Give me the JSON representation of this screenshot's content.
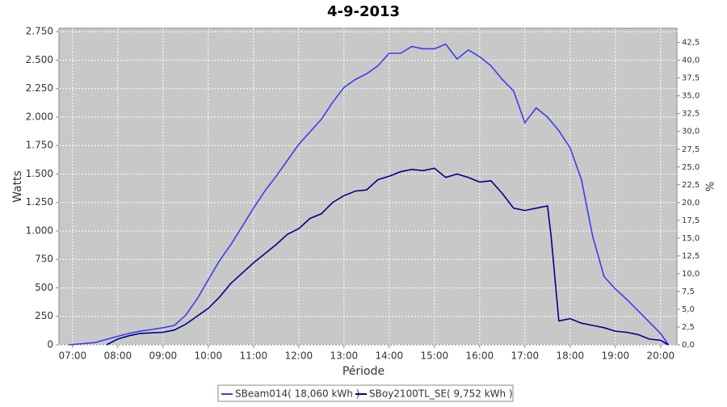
{
  "chart_data": {
    "type": "line",
    "title": "4-9-2013",
    "x_label": "Période",
    "y_label": "Watts",
    "y2_label": "%",
    "xlim": [
      6.7,
      20.36
    ],
    "xticks": [
      {
        "value": 7,
        "label": "07:00"
      },
      {
        "value": 8,
        "label": "08:00"
      },
      {
        "value": 9,
        "label": "09:00"
      },
      {
        "value": 10,
        "label": "10:00"
      },
      {
        "value": 11,
        "label": "11:00"
      },
      {
        "value": 12,
        "label": "12:00"
      },
      {
        "value": 13,
        "label": "13:00"
      },
      {
        "value": 14,
        "label": "14:00"
      },
      {
        "value": 15,
        "label": "15:00"
      },
      {
        "value": 16,
        "label": "16:00"
      },
      {
        "value": 17,
        "label": "17:00"
      },
      {
        "value": 18,
        "label": "18:00"
      },
      {
        "value": 19,
        "label": "19:00"
      },
      {
        "value": 20,
        "label": "20:00"
      }
    ],
    "ylim": [
      0,
      2780
    ],
    "yticks": [
      0,
      250,
      500,
      750,
      {
        "value": 1000,
        "label": "1.000"
      },
      {
        "value": 1250,
        "label": "1.250"
      },
      {
        "value": 1500,
        "label": "1.500"
      },
      {
        "value": 1750,
        "label": "1.750"
      },
      {
        "value": 2000,
        "label": "2.000"
      },
      {
        "value": 2250,
        "label": "2.250"
      },
      {
        "value": 2500,
        "label": "2.500"
      },
      {
        "value": 2750,
        "label": "2.750"
      }
    ],
    "y2lim": [
      0,
      44.5
    ],
    "y2ticks": [
      {
        "value": 0,
        "label": "0,0"
      },
      {
        "value": 2.5,
        "label": "2,5"
      },
      {
        "value": 5,
        "label": "5,0"
      },
      {
        "value": 7.5,
        "label": "7,5"
      },
      {
        "value": 10,
        "label": "10,0"
      },
      {
        "value": 12.5,
        "label": "12,5"
      },
      {
        "value": 15,
        "label": "15,0"
      },
      {
        "value": 17.5,
        "label": "17,5"
      },
      {
        "value": 20,
        "label": "20,0"
      },
      {
        "value": 22.5,
        "label": "22,5"
      },
      {
        "value": 25,
        "label": "25,0"
      },
      {
        "value": 27.5,
        "label": "27,5"
      },
      {
        "value": 30,
        "label": "30,0"
      },
      {
        "value": 32.5,
        "label": "32,5"
      },
      {
        "value": 35,
        "label": "35,0"
      },
      {
        "value": 37.5,
        "label": "37,5"
      },
      {
        "value": 40,
        "label": "40,0"
      },
      {
        "value": 42.5,
        "label": "42,5"
      }
    ],
    "grid": true,
    "series": [
      {
        "name": "SBeam014( 18,060 kWh )",
        "color": "#3c3cf0",
        "x": [
          6.92,
          7.5,
          8,
          8.25,
          8.5,
          8.75,
          9,
          9.25,
          9.5,
          9.75,
          10,
          10.25,
          10.5,
          10.75,
          11,
          11.25,
          11.5,
          11.75,
          12,
          12.25,
          12.5,
          12.75,
          13,
          13.25,
          13.5,
          13.75,
          14,
          14.25,
          14.5,
          14.75,
          15,
          15.25,
          15.5,
          15.75,
          16,
          16.25,
          16.5,
          16.75,
          17,
          17.25,
          17.5,
          17.75,
          18,
          18.25,
          18.5,
          18.75,
          19,
          19.25,
          19.5,
          19.75,
          20,
          20.17
        ],
        "values": [
          0,
          20,
          75,
          100,
          120,
          135,
          150,
          170,
          260,
          400,
          570,
          740,
          880,
          1040,
          1200,
          1350,
          1480,
          1620,
          1760,
          1870,
          1980,
          2130,
          2260,
          2330,
          2380,
          2450,
          2560,
          2560,
          2620,
          2600,
          2600,
          2640,
          2510,
          2590,
          2530,
          2450,
          2330,
          2230,
          1950,
          2080,
          2000,
          1880,
          1730,
          1450,
          950,
          600,
          490,
          400,
          300,
          200,
          100,
          0
        ]
      },
      {
        "name": "SBoy2100TL_SE( 9,752 kWh )",
        "color": "#000090",
        "x": [
          7.75,
          8,
          8.25,
          8.5,
          8.75,
          9,
          9.25,
          9.5,
          9.75,
          10,
          10.25,
          10.5,
          10.75,
          11,
          11.25,
          11.5,
          11.75,
          12,
          12.25,
          12.5,
          12.75,
          13,
          13.25,
          13.5,
          13.75,
          14,
          14.25,
          14.5,
          14.75,
          15,
          15.25,
          15.5,
          15.75,
          16,
          16.25,
          16.5,
          16.75,
          17,
          17.25,
          17.5,
          17.58,
          17.75,
          18,
          18.25,
          18.5,
          18.75,
          19,
          19.25,
          19.5,
          19.75,
          20,
          20.17
        ],
        "values": [
          0,
          50,
          80,
          100,
          105,
          110,
          130,
          180,
          250,
          320,
          420,
          540,
          630,
          720,
          800,
          880,
          970,
          1020,
          1110,
          1150,
          1250,
          1310,
          1350,
          1360,
          1450,
          1480,
          1520,
          1540,
          1530,
          1550,
          1470,
          1500,
          1470,
          1430,
          1440,
          1330,
          1200,
          1180,
          1200,
          1220,
          950,
          210,
          230,
          190,
          170,
          150,
          120,
          110,
          90,
          50,
          40,
          0
        ]
      }
    ]
  }
}
